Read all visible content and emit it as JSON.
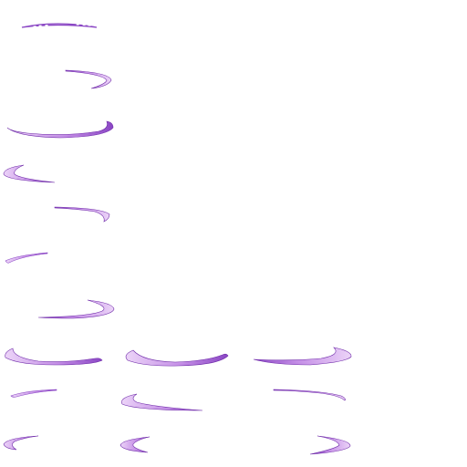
{
  "sheet": {
    "background": "#ffffff",
    "frame_count": 15,
    "colors": {
      "arc_light": "#ecd4f8",
      "arc_mid": "#c48ee6",
      "arc_dark": "#8a46c4",
      "arc_edge": "#6e2aa8"
    },
    "icon": "swoosh-arc-icon"
  }
}
